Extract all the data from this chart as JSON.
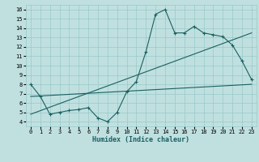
{
  "xlabel": "Humidex (Indice chaleur)",
  "background_color": "#c0e0e0",
  "grid_color": "#98c8c8",
  "line_color": "#1a6060",
  "xlim": [
    -0.5,
    23.5
  ],
  "ylim": [
    3.5,
    16.5
  ],
  "xticks": [
    0,
    1,
    2,
    3,
    4,
    5,
    6,
    7,
    8,
    9,
    10,
    11,
    12,
    13,
    14,
    15,
    16,
    17,
    18,
    19,
    20,
    21,
    22,
    23
  ],
  "yticks": [
    4,
    5,
    6,
    7,
    8,
    9,
    10,
    11,
    12,
    13,
    14,
    15,
    16
  ],
  "line1_x": [
    0,
    1,
    2,
    3,
    4,
    5,
    6,
    7,
    8,
    9,
    10,
    11,
    12,
    13,
    14,
    15,
    16,
    17,
    18,
    19,
    20,
    21,
    22,
    23
  ],
  "line1_y": [
    8.0,
    6.7,
    4.8,
    5.0,
    5.2,
    5.3,
    5.5,
    4.4,
    4.0,
    5.0,
    7.2,
    8.3,
    11.5,
    15.5,
    16.0,
    13.5,
    13.5,
    14.2,
    13.5,
    13.3,
    13.1,
    12.2,
    10.5,
    8.5
  ],
  "line2_x": [
    0,
    23
  ],
  "line2_y": [
    6.7,
    8.0
  ],
  "line3_x": [
    0,
    23
  ],
  "line3_y": [
    4.8,
    13.5
  ],
  "xlabel_fontsize": 6,
  "tick_fontsize": 5
}
